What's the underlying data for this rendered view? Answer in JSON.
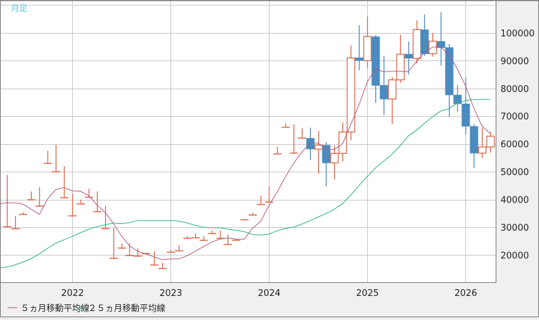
{
  "chart_data": {
    "type": "candlestick",
    "title": "月足",
    "xlabel": "",
    "ylabel": "",
    "ylim": [
      10200,
      111600
    ],
    "yticks": [
      20000,
      30000,
      40000,
      50000,
      60000,
      70000,
      80000,
      90000,
      100000
    ],
    "ygrid_extra": [
      110000
    ],
    "xticks": [
      {
        "label": "2022",
        "month": "2022-01"
      },
      {
        "label": "2023",
        "month": "2023-01"
      },
      {
        "label": "2024",
        "month": "2024-01"
      },
      {
        "label": "2025",
        "month": "2025-01"
      },
      {
        "label": "2026",
        "month": "2026-01"
      }
    ],
    "grid": true,
    "legend_placement": "bottom-left",
    "colors": {
      "up": "#d9694a",
      "down": "#4a8bc0",
      "ma5": "#b4597f",
      "ma25": "#2ab37a",
      "title": "#4cc8f0",
      "grid": "#c8c8c8"
    },
    "legend": [
      {
        "name": "５ヵ月移動平均線",
        "series": "ma5"
      },
      {
        "name": "２５ヵ月移動平均線",
        "series": "ma25"
      }
    ],
    "months": [
      "2021-04",
      "2021-05",
      "2021-06",
      "2021-07",
      "2021-08",
      "2021-09",
      "2021-10",
      "2021-11",
      "2021-12",
      "2022-01",
      "2022-02",
      "2022-03",
      "2022-04",
      "2022-05",
      "2022-06",
      "2022-07",
      "2022-08",
      "2022-09",
      "2022-10",
      "2022-11",
      "2022-12",
      "2023-01",
      "2023-02",
      "2023-03",
      "2023-04",
      "2023-05",
      "2023-06",
      "2023-07",
      "2023-08",
      "2023-09",
      "2023-10",
      "2023-11",
      "2023-12",
      "2024-01",
      "2024-02",
      "2024-03",
      "2024-04",
      "2024-05",
      "2024-06",
      "2024-07",
      "2024-08",
      "2024-09",
      "2024-10",
      "2024-11",
      "2024-12",
      "2025-01",
      "2025-02",
      "2025-03",
      "2025-04",
      "2025-05",
      "2025-06",
      "2025-07",
      "2025-08",
      "2025-09",
      "2025-10",
      "2025-11",
      "2025-12",
      "2026-01",
      "2026-02",
      "2026-03",
      "2026-04"
    ],
    "ohlc": [
      null,
      [
        30200,
        48800,
        30200,
        30200
      ],
      [
        29500,
        34000,
        29500,
        29500
      ],
      [
        34600,
        35400,
        34600,
        34600
      ],
      [
        39900,
        42900,
        39900,
        39900
      ],
      [
        37600,
        44400,
        37600,
        37600
      ],
      [
        53000,
        57500,
        53000,
        53000
      ],
      [
        50000,
        59700,
        50000,
        50000
      ],
      [
        40600,
        52000,
        40600,
        40600
      ],
      [
        34100,
        42100,
        34100,
        34100
      ],
      [
        38400,
        39900,
        38400,
        38400
      ],
      [
        40800,
        43800,
        40800,
        40800
      ],
      [
        35600,
        42900,
        35600,
        35600
      ],
      [
        29500,
        37700,
        29500,
        29500
      ],
      [
        18800,
        29700,
        18800,
        18800
      ],
      [
        22500,
        24100,
        22500,
        22500
      ],
      [
        19800,
        24300,
        19800,
        19800
      ],
      [
        19600,
        22400,
        19600,
        19600
      ],
      [
        20500,
        20900,
        20500,
        20500
      ],
      [
        16400,
        21300,
        16400,
        16400
      ],
      [
        15100,
        17200,
        15100,
        15100
      ],
      [
        21000,
        21800,
        21000,
        21000
      ],
      [
        21500,
        23500,
        21500,
        21500
      ],
      [
        26000,
        26800,
        26000,
        26000
      ],
      [
        26200,
        27800,
        26200,
        26200
      ],
      [
        25300,
        26800,
        25300,
        25300
      ],
      [
        27700,
        28800,
        27700,
        27700
      ],
      [
        26000,
        28800,
        26000,
        26000
      ],
      [
        23800,
        27300,
        23800,
        23800
      ],
      [
        25300,
        25600,
        25300,
        25300
      ],
      [
        32700,
        32900,
        32700,
        32700
      ],
      [
        34400,
        35200,
        34400,
        34400
      ],
      [
        38200,
        41400,
        38200,
        38200
      ],
      [
        39100,
        44600,
        39100,
        39100
      ],
      [
        56400,
        59000,
        56400,
        56400
      ],
      [
        66000,
        67400,
        66000,
        66000
      ],
      [
        56700,
        67100,
        56700,
        56700
      ],
      [
        62100,
        65600,
        62100,
        62100
      ],
      [
        62100,
        65900,
        54200,
        58100
      ],
      [
        58100,
        64600,
        49200,
        59600
      ],
      [
        59600,
        60600,
        44700,
        53100
      ],
      [
        53200,
        59400,
        47200,
        56600
      ],
      [
        56600,
        67800,
        53600,
        64300
      ],
      [
        64300,
        95500,
        61300,
        91000
      ],
      [
        91100,
        102800,
        86500,
        90000
      ],
      [
        90000,
        105900,
        87300,
        98700
      ],
      [
        98700,
        99200,
        74800,
        81000
      ],
      [
        81200,
        91800,
        70400,
        76100
      ],
      [
        76200,
        84100,
        67200,
        83100
      ],
      [
        83100,
        99300,
        82000,
        92300
      ],
      [
        92400,
        96800,
        85000,
        90800
      ],
      [
        90800,
        104500,
        89000,
        101200
      ],
      [
        101200,
        106700,
        91700,
        92400
      ],
      [
        92500,
        100000,
        91400,
        97000
      ],
      [
        97000,
        107500,
        88200,
        94600
      ],
      [
        94800,
        96000,
        69700,
        77600
      ],
      [
        77700,
        81200,
        71600,
        74400
      ],
      [
        74500,
        83900,
        63500,
        66300
      ],
      [
        66400,
        67100,
        51400,
        56600
      ],
      [
        56700,
        65800,
        54900,
        58900
      ],
      [
        58900,
        64400,
        56900,
        62800
      ]
    ],
    "ma5": [
      38400,
      38800,
      38800,
      38300,
      36500,
      34600,
      40200,
      43600,
      44300,
      43100,
      43000,
      41400,
      38100,
      35400,
      31500,
      27000,
      23300,
      21300,
      20400,
      19300,
      18300,
      18600,
      18600,
      19700,
      21300,
      23000,
      24600,
      25700,
      26100,
      25700,
      25700,
      29600,
      32100,
      37700,
      42600,
      48000,
      52900,
      57000,
      60200,
      60400,
      58000,
      58000,
      60000,
      67000,
      74000,
      82200,
      87100,
      86000,
      86200,
      86200,
      86000,
      89600,
      92900,
      94900,
      94900,
      92100,
      87100,
      81000,
      73100,
      66500,
      63800
    ],
    "ma25": [
      15200,
      15700,
      16400,
      17500,
      18700,
      20400,
      22400,
      24300,
      25500,
      26700,
      28000,
      29300,
      30200,
      30900,
      31500,
      31300,
      31700,
      32400,
      32400,
      32400,
      32400,
      32400,
      32200,
      31600,
      30700,
      30000,
      29800,
      29800,
      29300,
      28900,
      28400,
      27400,
      27200,
      27500,
      28700,
      29600,
      30000,
      31100,
      32300,
      33700,
      34900,
      36500,
      38500,
      41600,
      45000,
      48200,
      51300,
      53800,
      56200,
      59300,
      62800,
      64900,
      67400,
      69800,
      71900,
      72700,
      74800,
      75600,
      76000,
      76000,
      76000
    ]
  }
}
